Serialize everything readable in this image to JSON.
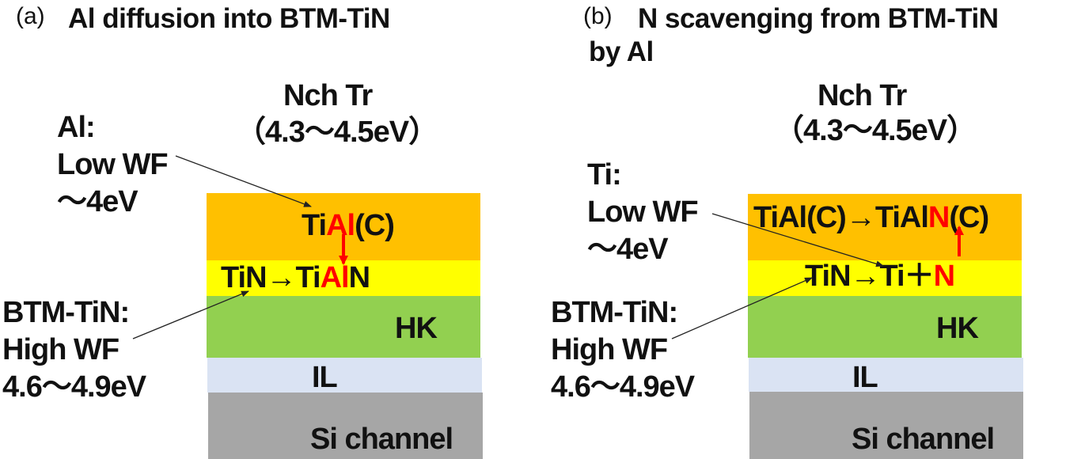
{
  "colors": {
    "metal": "#FFC000",
    "btm_tin": "#FFFF00",
    "hk": "#92D050",
    "il": "#DAE3F3",
    "si": "#A6A6A6",
    "highlight": "#FF0000",
    "arrow": "#222222"
  },
  "panel_a": {
    "tag": "(a)",
    "title": "Al diffusion into BTM-TiN",
    "device_line1": "Nch Tr",
    "device_line2": "（4.3～4.5eV）",
    "top_note": [
      "Al:",
      "Low WF",
      "～4eV"
    ],
    "bottom_note": [
      "BTM-TiN:",
      "High WF",
      "4.6～4.9eV"
    ],
    "metal_text": [
      {
        "t": "Ti",
        "red": false
      },
      {
        "t": "Al",
        "red": true
      },
      {
        "t": "(C)",
        "red": false
      }
    ],
    "tin_text": [
      {
        "t": "TiN→Ti",
        "red": false
      },
      {
        "t": "Al",
        "red": true
      },
      {
        "t": "N",
        "red": false
      }
    ],
    "hk": "HK",
    "il": "IL",
    "si": "Si channel"
  },
  "panel_b": {
    "tag": "(b)",
    "title_line1": "N scavenging from BTM-TiN",
    "title_line2": "by Al",
    "device_line1": "Nch Tr",
    "device_line2": "（4.3～4.5eV）",
    "top_note": [
      "Ti:",
      "Low WF",
      "～4eV"
    ],
    "bottom_note": [
      "BTM-TiN:",
      "High WF",
      "4.6～4.9eV"
    ],
    "metal_text": [
      {
        "t": "TiAl(C)→TiAl",
        "red": false
      },
      {
        "t": "N",
        "red": true
      },
      {
        "t": "(C)",
        "red": false
      }
    ],
    "tin_text": [
      {
        "t": "TiN→Ti＋",
        "red": false
      },
      {
        "t": "N",
        "red": true
      }
    ],
    "hk": "HK",
    "il": "IL",
    "si": "Si channel"
  }
}
